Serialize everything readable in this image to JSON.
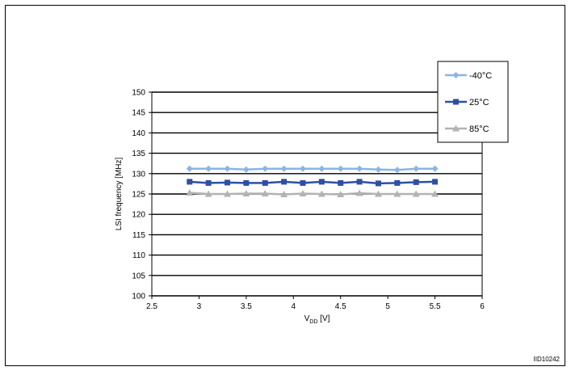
{
  "figure_id": "IID10242",
  "chart_data": {
    "type": "line",
    "title": "",
    "xlabel": {
      "main": "V",
      "sub": "DD",
      "unit": " [V]"
    },
    "ylabel": "LSI frequency [MHz]",
    "xlim": [
      2.5,
      6
    ],
    "ylim": [
      100,
      150
    ],
    "xticks": [
      "2.5",
      "3",
      "3.5",
      "4",
      "4.5",
      "5",
      "5.5",
      "6"
    ],
    "yticks": [
      "100",
      "105",
      "110",
      "115",
      "120",
      "125",
      "130",
      "135",
      "140",
      "145",
      "150"
    ],
    "grid": "horizontal",
    "legend_position": "top-right",
    "x": [
      2.9,
      3.1,
      3.3,
      3.5,
      3.7,
      3.9,
      4.1,
      4.3,
      4.5,
      4.7,
      4.9,
      5.1,
      5.3,
      5.5
    ],
    "series": [
      {
        "name": "-40°C",
        "color": "#8db4e2",
        "marker": "diamond",
        "values": [
          131.2,
          131.2,
          131.2,
          131.0,
          131.2,
          131.2,
          131.2,
          131.2,
          131.2,
          131.2,
          131.0,
          130.9,
          131.2,
          131.2
        ]
      },
      {
        "name": "25°C",
        "color": "#2e4fa3",
        "marker": "square",
        "values": [
          128.0,
          127.7,
          127.8,
          127.7,
          127.7,
          128.0,
          127.7,
          128.0,
          127.7,
          128.0,
          127.6,
          127.7,
          127.9,
          128.0
        ]
      },
      {
        "name": "85°C",
        "color": "#b3b3b3",
        "marker": "triangle",
        "values": [
          125.3,
          125.0,
          125.0,
          125.1,
          125.1,
          124.9,
          125.1,
          125.0,
          124.9,
          125.2,
          125.0,
          125.0,
          125.0,
          125.0
        ]
      }
    ]
  }
}
